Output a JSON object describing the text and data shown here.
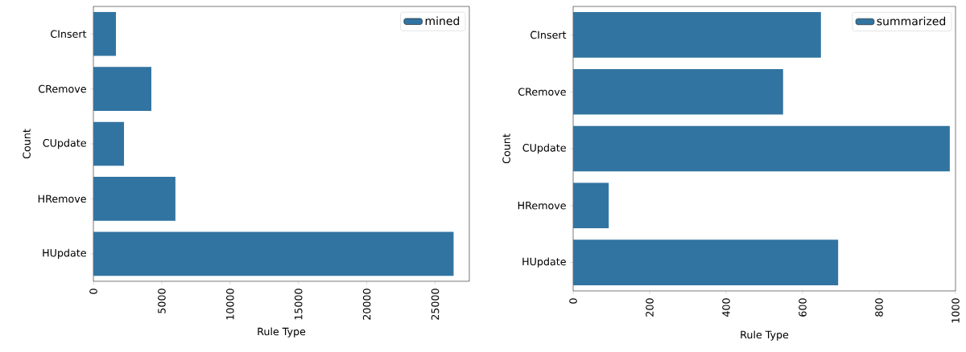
{
  "chart_data": [
    {
      "type": "bar",
      "orientation": "horizontal",
      "categories": [
        "CInsert",
        "CRemove",
        "CUpdate",
        "HRemove",
        "HUpdate"
      ],
      "series": [
        {
          "name": "mined",
          "color": "#3274a1",
          "values": [
            1650,
            4240,
            2240,
            6000,
            26350
          ]
        }
      ],
      "xlabel": "Rule Type",
      "ylabel": "Count",
      "xlim": [
        0,
        27500
      ],
      "xticks": [
        0,
        5000,
        10000,
        15000,
        20000,
        25000
      ],
      "legend": "top right"
    },
    {
      "type": "bar",
      "orientation": "horizontal",
      "categories": [
        "CInsert",
        "CRemove",
        "CUpdate",
        "HRemove",
        "HUpdate"
      ],
      "series": [
        {
          "name": "summarized",
          "color": "#3274a1",
          "values": [
            648,
            549,
            985,
            93,
            693
          ]
        }
      ],
      "xlabel": "Rule Type",
      "ylabel": "Count",
      "xlim": [
        0,
        1000
      ],
      "xticks": [
        0,
        200,
        400,
        600,
        800,
        1000
      ],
      "legend": "top right"
    }
  ]
}
